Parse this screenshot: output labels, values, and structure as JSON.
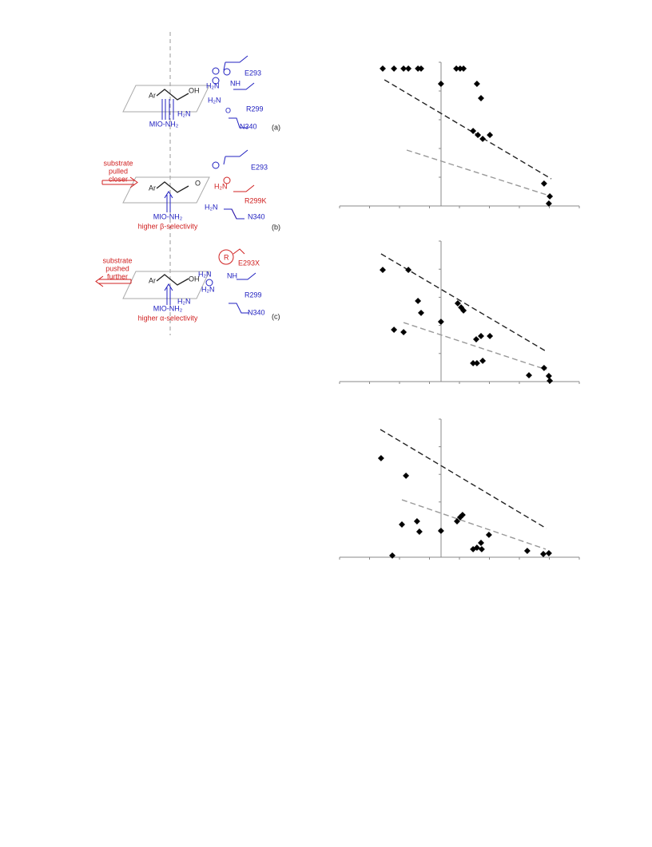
{
  "figure": {
    "panels": [
      {
        "label": "(a)",
        "texts": [
          "E293",
          "R299",
          "N340",
          "MIO-NH₂",
          "Ar",
          "OH",
          "H₂N",
          "H₂N",
          "NH",
          "H₂N",
          "O"
        ]
      },
      {
        "label": "(b)",
        "texts": [
          "substrate",
          "pulled",
          "closer",
          "Ar",
          "O",
          "E293",
          "H₂N",
          "R299K",
          "N340",
          "H₂N",
          "MIO-NH₂",
          "higher β-selectivity"
        ]
      },
      {
        "label": "(c)",
        "texts": [
          "substrate",
          "pushed",
          "further",
          "E293X",
          "R",
          "Ar",
          "OH",
          "H₂N",
          "H₂N",
          "NH",
          "R299",
          "H₂N",
          "N340",
          "MIO-NH₂",
          "higher α-selectivity"
        ]
      }
    ]
  },
  "chart_data": [
    {
      "type": "scatter",
      "xlim": [
        0,
        100
      ],
      "ylim": [
        0,
        100
      ],
      "color": "#000000",
      "x": [
        18,
        22.7,
        26.7,
        28.7,
        32.7,
        34,
        48.7,
        50.3,
        51.7,
        42.3,
        57.3,
        59,
        55.7,
        57.7,
        59.7,
        62.7,
        85.3,
        87.7,
        87.3
      ],
      "y": [
        95.6,
        95.6,
        95.6,
        95.6,
        95.6,
        95.6,
        95.6,
        95.6,
        95.6,
        85,
        85,
        75,
        52.2,
        49.4,
        46.7,
        49.4,
        15.6,
        6.7,
        1.7
      ],
      "fits": [
        {
          "color": "#222222",
          "x": [
            18.7,
            88.3
          ],
          "y": [
            87.8,
            18.9
          ]
        },
        {
          "color": "#999999",
          "x": [
            28,
            86.3
          ],
          "y": [
            38.9,
            7.8
          ]
        }
      ]
    },
    {
      "type": "scatter",
      "xlim": [
        0,
        100
      ],
      "ylim": [
        0,
        100
      ],
      "color": "#000000",
      "x": [
        18,
        28.7,
        32.7,
        34,
        22.7,
        26.7,
        42.3,
        49.3,
        50.7,
        51.7,
        57,
        59,
        62.7,
        55.7,
        57.3,
        59.7,
        79,
        85.3,
        87.3,
        87.7
      ],
      "y": [
        79.5,
        79.5,
        57.4,
        48.9,
        36.9,
        35.2,
        42.6,
        55.7,
        52.8,
        50.6,
        30.1,
        32.4,
        32.4,
        13.1,
        13.1,
        14.8,
        4.5,
        9.7,
        4,
        0.6
      ],
      "fits": [
        {
          "color": "#222222",
          "x": [
            17.3,
            86.7
          ],
          "y": [
            90.9,
            21
          ]
        },
        {
          "color": "#999999",
          "x": [
            26.7,
            86.3
          ],
          "y": [
            42,
            8.5
          ]
        }
      ]
    },
    {
      "type": "scatter",
      "xlim": [
        0,
        100
      ],
      "ylim": [
        0,
        100
      ],
      "color": "#000000",
      "x": [
        17.3,
        27.7,
        26,
        32.3,
        33.3,
        22,
        42.3,
        49,
        50.3,
        51.3,
        55.7,
        57.3,
        59,
        59.3,
        62.3,
        78.3,
        85,
        87.3
      ],
      "y": [
        71.7,
        59,
        23.7,
        26,
        18.5,
        1.2,
        19.1,
        26,
        28.9,
        30.6,
        5.8,
        6.9,
        10.4,
        5.8,
        16.2,
        4.6,
        2.3,
        2.9
      ],
      "fits": [
        {
          "color": "#222222",
          "x": [
            17,
            86.3
          ],
          "y": [
            92.5,
            20.8
          ]
        },
        {
          "color": "#999999",
          "x": [
            26,
            86
          ],
          "y": [
            41.6,
            5.8
          ]
        }
      ]
    }
  ]
}
